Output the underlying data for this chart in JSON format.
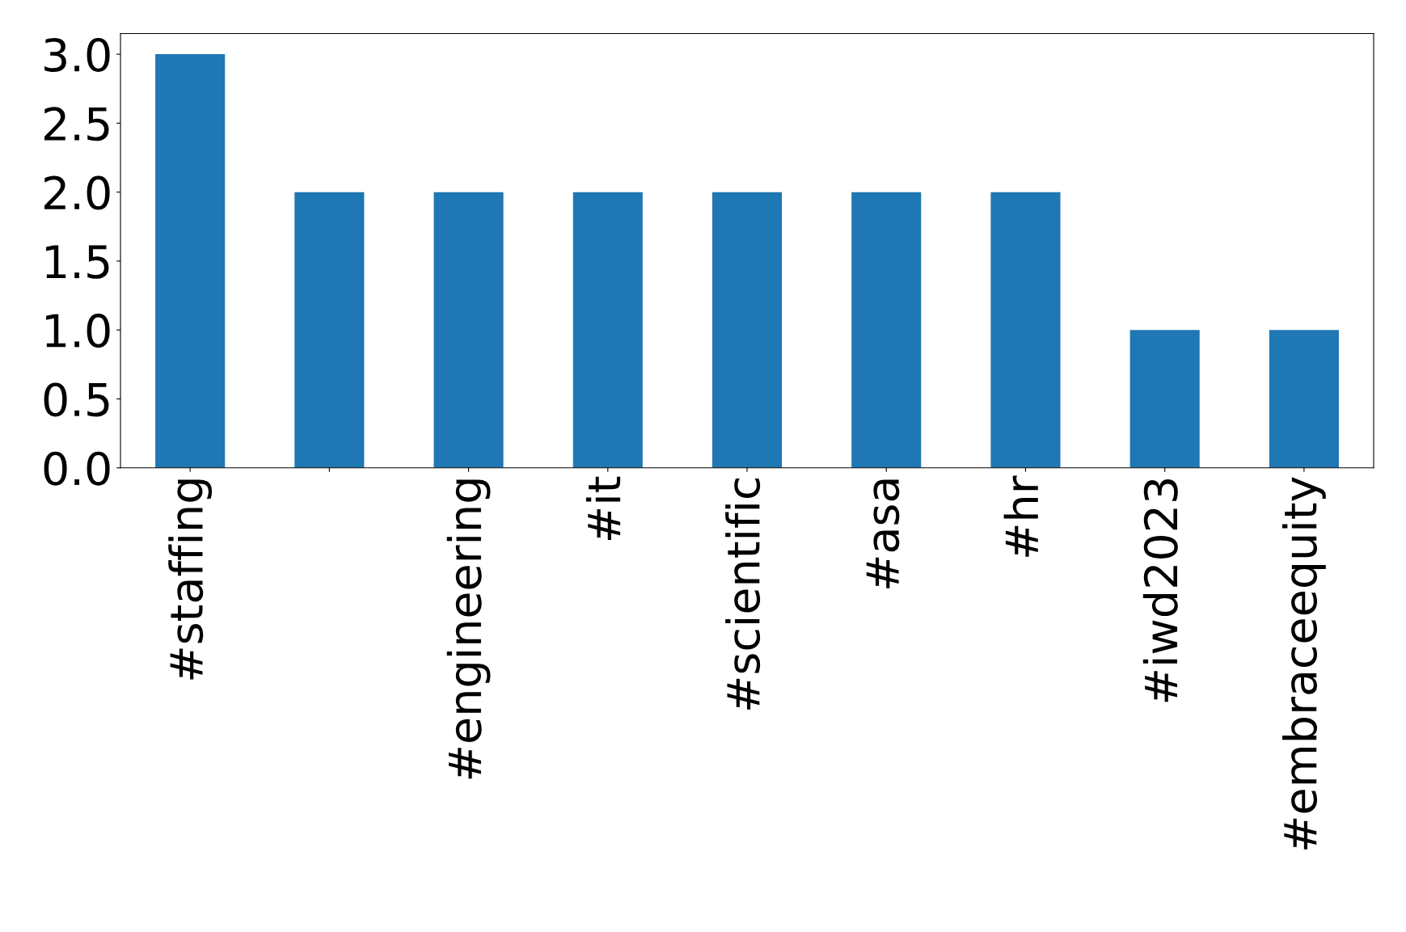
{
  "chart_data": {
    "type": "bar",
    "categories": [
      "#staffing",
      null,
      "#engineering",
      "#it",
      "#scientific",
      "#asa",
      "#hr",
      "#iwd2023",
      "#embraceequity"
    ],
    "values": [
      3,
      2,
      2,
      2,
      2,
      2,
      2,
      1,
      1
    ],
    "color": "#1f77b4",
    "ylim": [
      0,
      3.15
    ],
    "yticks": [
      {
        "value": 0,
        "label": "0.0"
      },
      {
        "value": 0.5,
        "label": "0.5"
      },
      {
        "value": 1,
        "label": "1.0"
      },
      {
        "value": 1.5,
        "label": "1.5"
      },
      {
        "value": 2,
        "label": "2.0"
      },
      {
        "value": 2.5,
        "label": "2.5"
      },
      {
        "value": 3,
        "label": "3.0"
      }
    ],
    "grid": false,
    "legend": false
  }
}
